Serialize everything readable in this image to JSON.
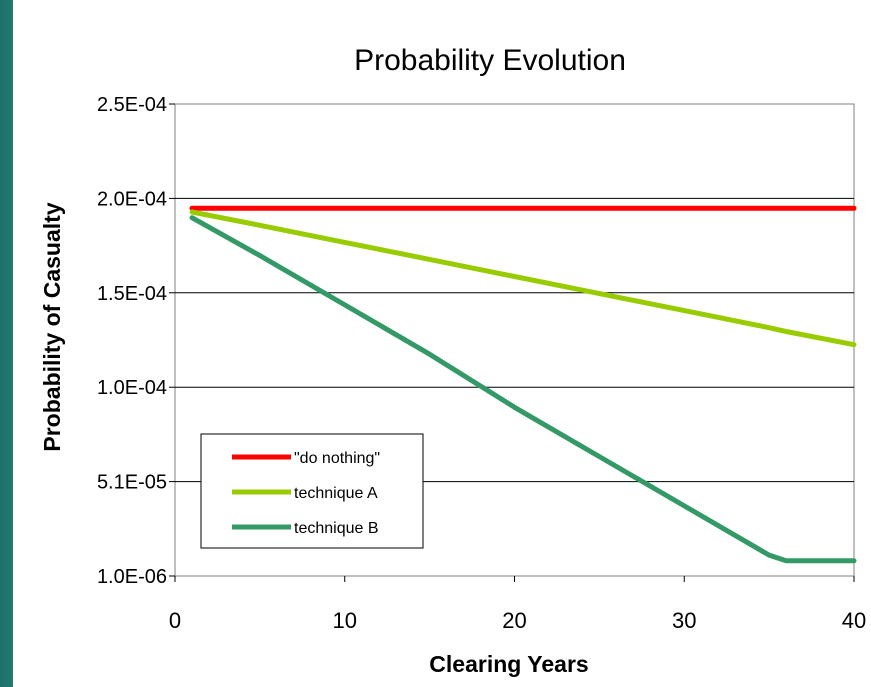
{
  "chart_data": {
    "type": "line",
    "title": "Probability Evolution",
    "xlabel": "Clearing Years",
    "ylabel": "Probability of Casualty",
    "xlim": [
      0,
      40
    ],
    "ylim": [
      1e-06,
      0.00025
    ],
    "x_ticks": [
      "0",
      "10",
      "20",
      "30",
      "40"
    ],
    "y_ticks": [
      "2.5E-04",
      "2.0E-04",
      "1.5E-04",
      "1.0E-04",
      "5.1E-05",
      "1.0E-06"
    ],
    "grid": "horizontal",
    "legend_position": "bottom-left",
    "x": [
      1,
      5,
      10,
      15,
      20,
      25,
      30,
      35,
      36,
      40
    ],
    "series": [
      {
        "name": "\"do nothing\"",
        "color": "#ff0000",
        "values": [
          0.000195,
          0.000195,
          0.000195,
          0.000195,
          0.000195,
          0.000195,
          0.000195,
          0.000195,
          0.000195,
          0.000195
        ]
      },
      {
        "name": "technique A",
        "color": "#99cc00",
        "values": [
          0.000193,
          0.000186,
          0.000177,
          0.000168,
          0.000159,
          0.00015,
          0.000141,
          0.000132,
          0.00013,
          0.000123
        ]
      },
      {
        "name": "technique B",
        "color": "#339966",
        "values": [
          0.00019,
          0.00017,
          0.000144,
          0.000118,
          9e-05,
          6.4e-05,
          3.8e-05,
          1.2e-05,
          9e-06,
          9e-06
        ]
      }
    ]
  }
}
